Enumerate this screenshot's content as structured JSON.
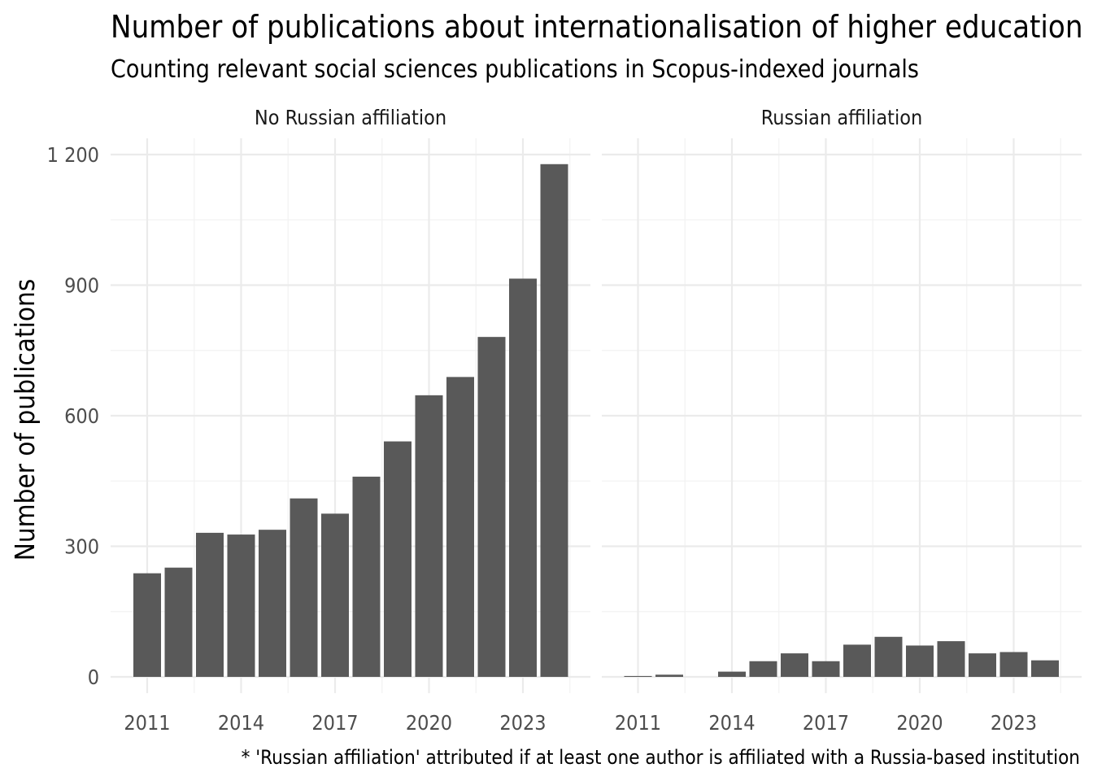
{
  "title": "Number of publications about internationalisation of higher education",
  "subtitle": "Counting relevant social sciences publications in Scopus-indexed journals",
  "caption": "* 'Russian affiliation' attributed if at least one author is affiliated with a Russia-based institution",
  "chart_data": {
    "type": "bar",
    "ylabel": "Number of publications",
    "xlabel": "",
    "x": [
      2011,
      2012,
      2013,
      2014,
      2015,
      2016,
      2017,
      2018,
      2019,
      2020,
      2021,
      2022,
      2023,
      2024
    ],
    "xticks": [
      2011,
      2014,
      2017,
      2020,
      2023
    ],
    "xtick_labels": [
      "2011",
      "2014",
      "2017",
      "2020",
      "2023"
    ],
    "yticks": [
      0,
      300,
      600,
      900,
      1200
    ],
    "ytick_labels": [
      "0",
      "300",
      "600",
      "900",
      "1 200"
    ],
    "ylim": [
      0,
      1200
    ],
    "grid": true,
    "facets": [
      {
        "label": "No Russian affiliation",
        "values": [
          238,
          251,
          331,
          327,
          338,
          410,
          375,
          460,
          541,
          647,
          689,
          781,
          915,
          1178
        ]
      },
      {
        "label": "Russian affiliation",
        "values": [
          2,
          5,
          0,
          12,
          36,
          54,
          36,
          74,
          92,
          72,
          82,
          54,
          57,
          38
        ]
      }
    ]
  }
}
